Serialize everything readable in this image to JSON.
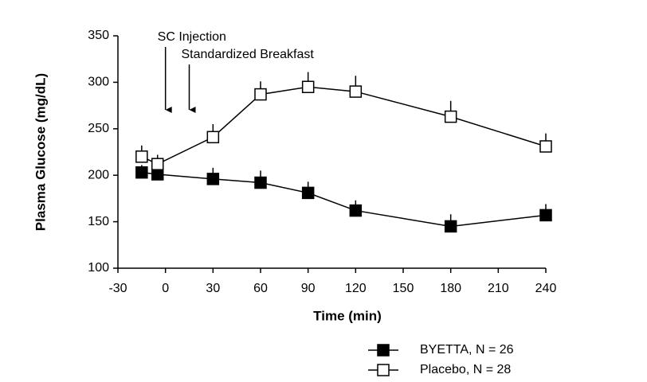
{
  "chart_data": {
    "type": "line",
    "xlabel": "Time (min)",
    "ylabel": "Plasma Glucose (mg/dL)",
    "x": [
      -15,
      -5,
      30,
      60,
      90,
      120,
      180,
      240
    ],
    "series": [
      {
        "name": "BYETTA, N = 26",
        "color": "#000000",
        "filled": true,
        "values": [
          203,
          201,
          196,
          192,
          181,
          162,
          145,
          157
        ],
        "errors": [
          8,
          8,
          12,
          13,
          12,
          11,
          13,
          12
        ]
      },
      {
        "name": "Placebo, N = 28",
        "color": "#000000",
        "filled": false,
        "values": [
          220,
          212,
          241,
          287,
          295,
          290,
          263,
          231
        ],
        "errors": [
          12,
          10,
          14,
          14,
          16,
          17,
          17,
          14
        ]
      }
    ],
    "xlim": [
      -30,
      240
    ],
    "xticks": [
      -30,
      0,
      30,
      60,
      90,
      120,
      150,
      180,
      210,
      240
    ],
    "ylim": [
      100,
      350
    ],
    "yticks": [
      100,
      150,
      200,
      250,
      300,
      350
    ],
    "annotations": [
      {
        "text": "SC Injection",
        "x": 0
      },
      {
        "text": "Standardized Breakfast",
        "x": 15
      }
    ]
  }
}
